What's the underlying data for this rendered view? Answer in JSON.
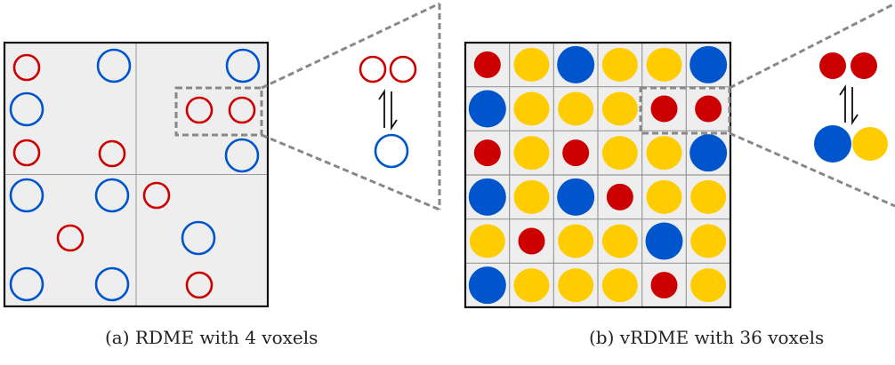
{
  "captions": {
    "a": "(a) RDME with 4 voxels",
    "b": "(b) vRDME with 36 voxels"
  },
  "colors": {
    "red": "#cc0000",
    "blue": "#0055cc",
    "yellow": "#ffcc00",
    "panel_fill": "#eeeeee",
    "grid_line": "#999999",
    "zoom_dash": "#888888"
  },
  "panel_a": {
    "voxel_grid": [
      2,
      2
    ],
    "molecules": [
      {
        "species": "red"
      },
      {
        "species": "blue"
      },
      {
        "species": "blue"
      },
      {
        "species": "blue"
      },
      {
        "species": "red"
      },
      {
        "species": "red"
      },
      {
        "species": "red"
      },
      {
        "species": "red"
      },
      {
        "species": "blue"
      },
      {
        "species": "blue"
      },
      {
        "species": "blue"
      },
      {
        "species": "red"
      },
      {
        "species": "red"
      },
      {
        "species": "blue"
      },
      {
        "species": "blue"
      },
      {
        "species": "blue"
      },
      {
        "species": "red"
      }
    ],
    "reaction": {
      "reactants": [
        "red",
        "red"
      ],
      "products": [
        "blue"
      ],
      "arrow": "reversible"
    }
  },
  "panel_b": {
    "voxel_grid": [
      6,
      6
    ],
    "cells": [
      [
        "red",
        "yellow",
        "blue",
        "yellow",
        "yellow",
        "blue"
      ],
      [
        "blue",
        "yellow",
        "yellow",
        "yellow",
        "red",
        "red"
      ],
      [
        "red",
        "yellow",
        "red",
        "yellow",
        "yellow",
        "blue"
      ],
      [
        "blue",
        "yellow",
        "blue",
        "red",
        "yellow",
        "yellow"
      ],
      [
        "yellow",
        "red",
        "yellow",
        "yellow",
        "blue",
        "yellow"
      ],
      [
        "blue",
        "yellow",
        "yellow",
        "yellow",
        "red",
        "yellow"
      ]
    ],
    "reaction": {
      "reactants": [
        "red",
        "red"
      ],
      "products": [
        "blue",
        "yellow"
      ],
      "arrow": "reversible"
    }
  }
}
